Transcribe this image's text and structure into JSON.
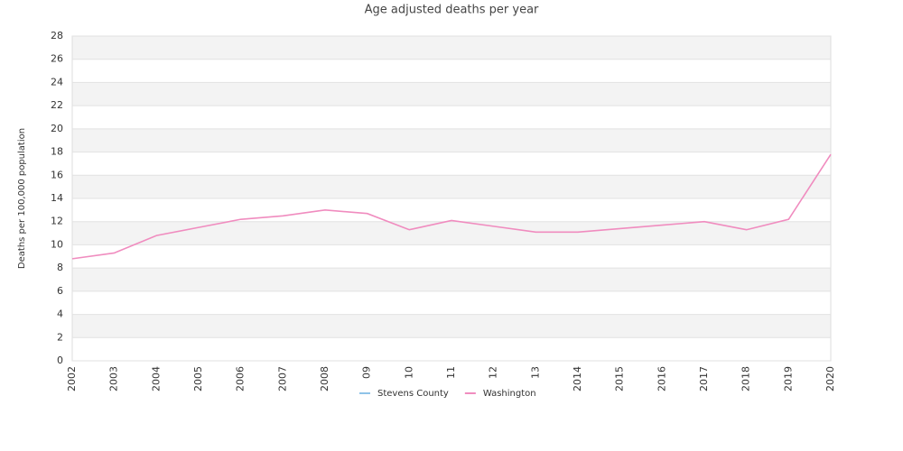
{
  "chart_data": {
    "type": "line",
    "title": "Age adjusted deaths per year",
    "y_label": "Deaths per 100,000 population",
    "categories": [
      "2002",
      "2003",
      "2004",
      "2005",
      "2006",
      "2007",
      "2008",
      "09",
      "10",
      "11",
      "12",
      "13",
      "2014",
      "2015",
      "2016",
      "2017",
      "2018",
      "2019",
      "2020"
    ],
    "series": [
      {
        "name": "Stevens County",
        "color": "#8fc3e8",
        "values": [
          null,
          null,
          null,
          null,
          null,
          null,
          null,
          null,
          null,
          null,
          null,
          null,
          null,
          null,
          null,
          null,
          null,
          null,
          null
        ]
      },
      {
        "name": "Washington",
        "color": "#f08cbf",
        "values": [
          8.8,
          9.3,
          10.8,
          11.5,
          12.2,
          12.5,
          13.0,
          12.7,
          11.3,
          12.1,
          11.6,
          11.1,
          11.1,
          11.4,
          11.7,
          12.0,
          11.3,
          12.2,
          17.8
        ]
      }
    ],
    "ylim": [
      0,
      28
    ],
    "yticks": [
      0,
      2,
      4,
      6,
      8,
      10,
      12,
      14,
      16,
      18,
      20,
      22,
      24,
      26,
      28
    ],
    "grid": true,
    "legend": "bottom"
  }
}
